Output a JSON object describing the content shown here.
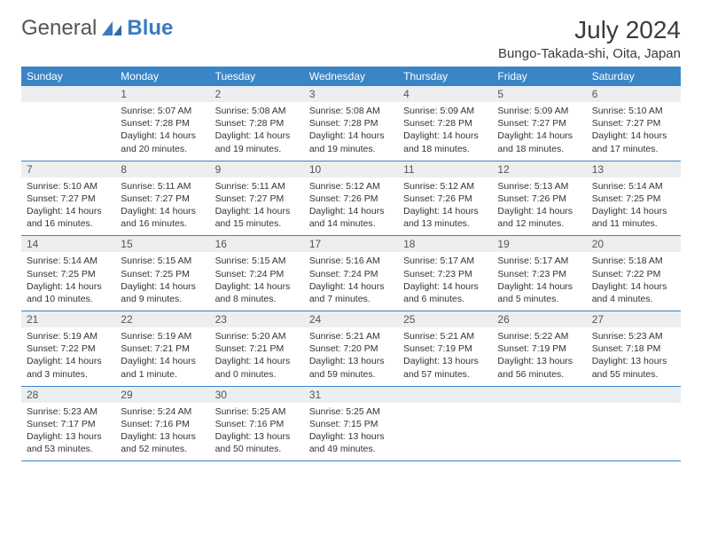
{
  "logo": {
    "text1": "General",
    "text2": "Blue"
  },
  "title": "July 2024",
  "location": "Bungo-Takada-shi, Oita, Japan",
  "colors": {
    "header_bg": "#3a85c8",
    "header_text": "#ffffff",
    "daynum_bg": "#eceeef",
    "border": "#3a85c8",
    "logo_gray": "#555555",
    "logo_blue": "#3a7bbf"
  },
  "day_names": [
    "Sunday",
    "Monday",
    "Tuesday",
    "Wednesday",
    "Thursday",
    "Friday",
    "Saturday"
  ],
  "weeks": [
    [
      {
        "n": "",
        "lines": [
          "",
          "",
          ""
        ]
      },
      {
        "n": "1",
        "lines": [
          "Sunrise: 5:07 AM",
          "Sunset: 7:28 PM",
          "Daylight: 14 hours and 20 minutes."
        ]
      },
      {
        "n": "2",
        "lines": [
          "Sunrise: 5:08 AM",
          "Sunset: 7:28 PM",
          "Daylight: 14 hours and 19 minutes."
        ]
      },
      {
        "n": "3",
        "lines": [
          "Sunrise: 5:08 AM",
          "Sunset: 7:28 PM",
          "Daylight: 14 hours and 19 minutes."
        ]
      },
      {
        "n": "4",
        "lines": [
          "Sunrise: 5:09 AM",
          "Sunset: 7:28 PM",
          "Daylight: 14 hours and 18 minutes."
        ]
      },
      {
        "n": "5",
        "lines": [
          "Sunrise: 5:09 AM",
          "Sunset: 7:27 PM",
          "Daylight: 14 hours and 18 minutes."
        ]
      },
      {
        "n": "6",
        "lines": [
          "Sunrise: 5:10 AM",
          "Sunset: 7:27 PM",
          "Daylight: 14 hours and 17 minutes."
        ]
      }
    ],
    [
      {
        "n": "7",
        "lines": [
          "Sunrise: 5:10 AM",
          "Sunset: 7:27 PM",
          "Daylight: 14 hours and 16 minutes."
        ]
      },
      {
        "n": "8",
        "lines": [
          "Sunrise: 5:11 AM",
          "Sunset: 7:27 PM",
          "Daylight: 14 hours and 16 minutes."
        ]
      },
      {
        "n": "9",
        "lines": [
          "Sunrise: 5:11 AM",
          "Sunset: 7:27 PM",
          "Daylight: 14 hours and 15 minutes."
        ]
      },
      {
        "n": "10",
        "lines": [
          "Sunrise: 5:12 AM",
          "Sunset: 7:26 PM",
          "Daylight: 14 hours and 14 minutes."
        ]
      },
      {
        "n": "11",
        "lines": [
          "Sunrise: 5:12 AM",
          "Sunset: 7:26 PM",
          "Daylight: 14 hours and 13 minutes."
        ]
      },
      {
        "n": "12",
        "lines": [
          "Sunrise: 5:13 AM",
          "Sunset: 7:26 PM",
          "Daylight: 14 hours and 12 minutes."
        ]
      },
      {
        "n": "13",
        "lines": [
          "Sunrise: 5:14 AM",
          "Sunset: 7:25 PM",
          "Daylight: 14 hours and 11 minutes."
        ]
      }
    ],
    [
      {
        "n": "14",
        "lines": [
          "Sunrise: 5:14 AM",
          "Sunset: 7:25 PM",
          "Daylight: 14 hours and 10 minutes."
        ]
      },
      {
        "n": "15",
        "lines": [
          "Sunrise: 5:15 AM",
          "Sunset: 7:25 PM",
          "Daylight: 14 hours and 9 minutes."
        ]
      },
      {
        "n": "16",
        "lines": [
          "Sunrise: 5:15 AM",
          "Sunset: 7:24 PM",
          "Daylight: 14 hours and 8 minutes."
        ]
      },
      {
        "n": "17",
        "lines": [
          "Sunrise: 5:16 AM",
          "Sunset: 7:24 PM",
          "Daylight: 14 hours and 7 minutes."
        ]
      },
      {
        "n": "18",
        "lines": [
          "Sunrise: 5:17 AM",
          "Sunset: 7:23 PM",
          "Daylight: 14 hours and 6 minutes."
        ]
      },
      {
        "n": "19",
        "lines": [
          "Sunrise: 5:17 AM",
          "Sunset: 7:23 PM",
          "Daylight: 14 hours and 5 minutes."
        ]
      },
      {
        "n": "20",
        "lines": [
          "Sunrise: 5:18 AM",
          "Sunset: 7:22 PM",
          "Daylight: 14 hours and 4 minutes."
        ]
      }
    ],
    [
      {
        "n": "21",
        "lines": [
          "Sunrise: 5:19 AM",
          "Sunset: 7:22 PM",
          "Daylight: 14 hours and 3 minutes."
        ]
      },
      {
        "n": "22",
        "lines": [
          "Sunrise: 5:19 AM",
          "Sunset: 7:21 PM",
          "Daylight: 14 hours and 1 minute."
        ]
      },
      {
        "n": "23",
        "lines": [
          "Sunrise: 5:20 AM",
          "Sunset: 7:21 PM",
          "Daylight: 14 hours and 0 minutes."
        ]
      },
      {
        "n": "24",
        "lines": [
          "Sunrise: 5:21 AM",
          "Sunset: 7:20 PM",
          "Daylight: 13 hours and 59 minutes."
        ]
      },
      {
        "n": "25",
        "lines": [
          "Sunrise: 5:21 AM",
          "Sunset: 7:19 PM",
          "Daylight: 13 hours and 57 minutes."
        ]
      },
      {
        "n": "26",
        "lines": [
          "Sunrise: 5:22 AM",
          "Sunset: 7:19 PM",
          "Daylight: 13 hours and 56 minutes."
        ]
      },
      {
        "n": "27",
        "lines": [
          "Sunrise: 5:23 AM",
          "Sunset: 7:18 PM",
          "Daylight: 13 hours and 55 minutes."
        ]
      }
    ],
    [
      {
        "n": "28",
        "lines": [
          "Sunrise: 5:23 AM",
          "Sunset: 7:17 PM",
          "Daylight: 13 hours and 53 minutes."
        ]
      },
      {
        "n": "29",
        "lines": [
          "Sunrise: 5:24 AM",
          "Sunset: 7:16 PM",
          "Daylight: 13 hours and 52 minutes."
        ]
      },
      {
        "n": "30",
        "lines": [
          "Sunrise: 5:25 AM",
          "Sunset: 7:16 PM",
          "Daylight: 13 hours and 50 minutes."
        ]
      },
      {
        "n": "31",
        "lines": [
          "Sunrise: 5:25 AM",
          "Sunset: 7:15 PM",
          "Daylight: 13 hours and 49 minutes."
        ]
      },
      {
        "n": "",
        "lines": [
          "",
          "",
          ""
        ]
      },
      {
        "n": "",
        "lines": [
          "",
          "",
          ""
        ]
      },
      {
        "n": "",
        "lines": [
          "",
          "",
          ""
        ]
      }
    ]
  ]
}
